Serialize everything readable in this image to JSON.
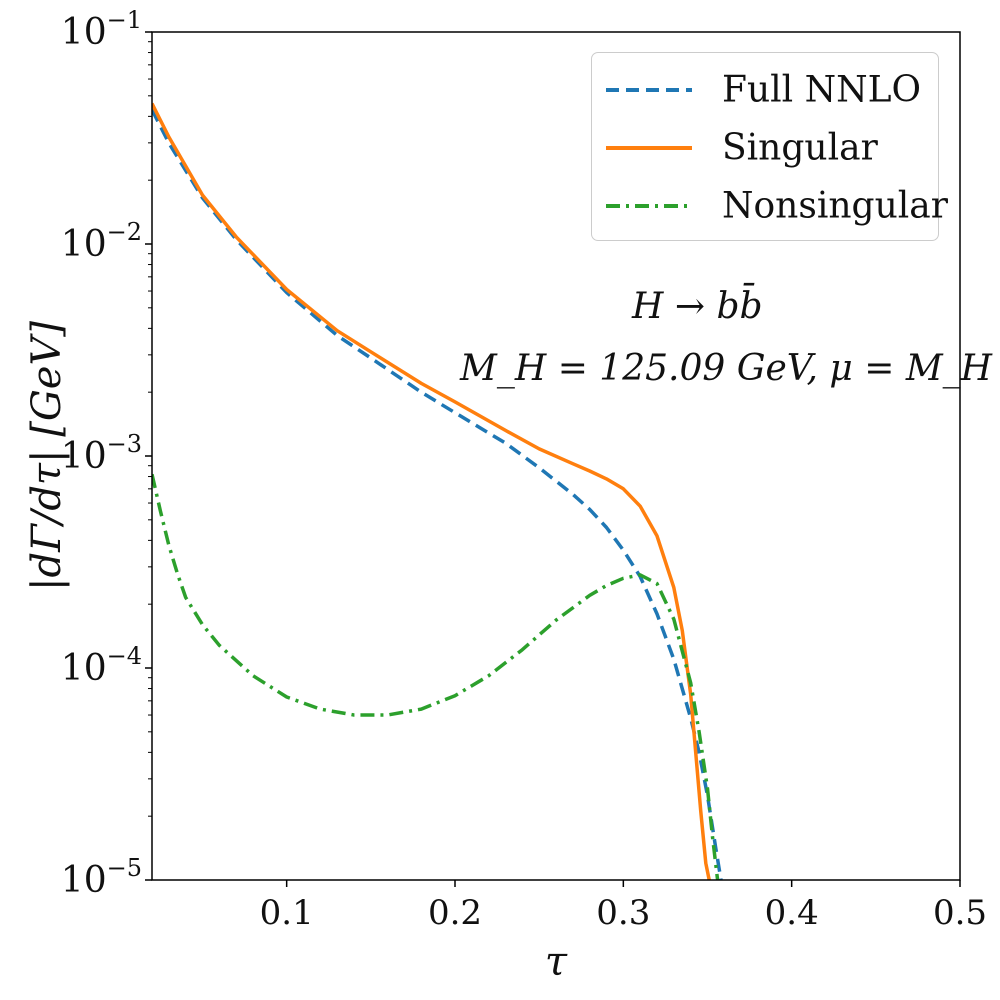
{
  "chart_data": {
    "type": "line",
    "title": "",
    "xlabel": "τ",
    "ylabel": "|dΓ/dτ|   [GeV]",
    "yscale": "log",
    "xlim": [
      0.02,
      0.5
    ],
    "ylim": [
      1e-05,
      0.1
    ],
    "x_ticks": [
      0.1,
      0.2,
      0.3,
      0.4,
      0.5
    ],
    "x_tick_labels": [
      "0.1",
      "0.2",
      "0.3",
      "0.4",
      "0.5"
    ],
    "y_ticks": [
      1e-05,
      0.0001,
      0.001,
      0.01,
      0.1
    ],
    "y_tick_labels": [
      {
        "base": "10",
        "exp": "−5"
      },
      {
        "base": "10",
        "exp": "−4"
      },
      {
        "base": "10",
        "exp": "−3"
      },
      {
        "base": "10",
        "exp": "−2"
      },
      {
        "base": "10",
        "exp": "−1"
      }
    ],
    "annotations": [
      "H → bb̄",
      "M_H = 125.09 GeV,  μ = M_H"
    ],
    "legend_position": "top-right",
    "series": [
      {
        "name": "Full NNLO",
        "color": "#1f77b4",
        "style": "dashed",
        "x": [
          0.02,
          0.03,
          0.05,
          0.07,
          0.1,
          0.13,
          0.15,
          0.18,
          0.2,
          0.23,
          0.25,
          0.27,
          0.28,
          0.29,
          0.3,
          0.31,
          0.32,
          0.33,
          0.34,
          0.345,
          0.35,
          0.355,
          0.358
        ],
        "y": [
          0.043,
          0.03,
          0.0165,
          0.0105,
          0.0059,
          0.0037,
          0.0029,
          0.002,
          0.0016,
          0.00115,
          0.00088,
          0.00066,
          0.00056,
          0.00046,
          0.00036,
          0.00027,
          0.00018,
          0.00011,
          5.8e-05,
          4e-05,
          2.5e-05,
          1.4e-05,
          1e-05
        ]
      },
      {
        "name": "Singular",
        "color": "#ff7f0e",
        "style": "solid",
        "x": [
          0.02,
          0.03,
          0.05,
          0.07,
          0.1,
          0.13,
          0.15,
          0.18,
          0.2,
          0.23,
          0.25,
          0.27,
          0.28,
          0.29,
          0.3,
          0.31,
          0.32,
          0.33,
          0.335,
          0.34,
          0.343,
          0.346,
          0.349,
          0.351
        ],
        "y": [
          0.046,
          0.032,
          0.017,
          0.0108,
          0.0061,
          0.0039,
          0.0031,
          0.0022,
          0.0018,
          0.00132,
          0.00108,
          0.00092,
          0.00085,
          0.00078,
          0.0007,
          0.00058,
          0.00042,
          0.00024,
          0.00015,
          7.5e-05,
          4e-05,
          2.1e-05,
          1.2e-05,
          1e-05
        ]
      },
      {
        "name": "Nonsingular",
        "color": "#2ca02c",
        "style": "dashdot",
        "x": [
          0.02,
          0.025,
          0.03,
          0.035,
          0.04,
          0.05,
          0.06,
          0.08,
          0.1,
          0.12,
          0.14,
          0.16,
          0.18,
          0.2,
          0.22,
          0.24,
          0.26,
          0.28,
          0.29,
          0.3,
          0.31,
          0.32,
          0.33,
          0.34,
          0.345,
          0.35,
          0.353,
          0.356
        ],
        "y": [
          0.00082,
          0.00055,
          0.00038,
          0.00028,
          0.000215,
          0.00016,
          0.000128,
          9.2e-05,
          7.3e-05,
          6.4e-05,
          6e-05,
          6e-05,
          6.4e-05,
          7.4e-05,
          9.2e-05,
          0.000122,
          0.000168,
          0.00022,
          0.000245,
          0.000265,
          0.000275,
          0.00025,
          0.00017,
          8.5e-05,
          5e-05,
          2.7e-05,
          1.6e-05,
          1e-05
        ]
      }
    ]
  }
}
